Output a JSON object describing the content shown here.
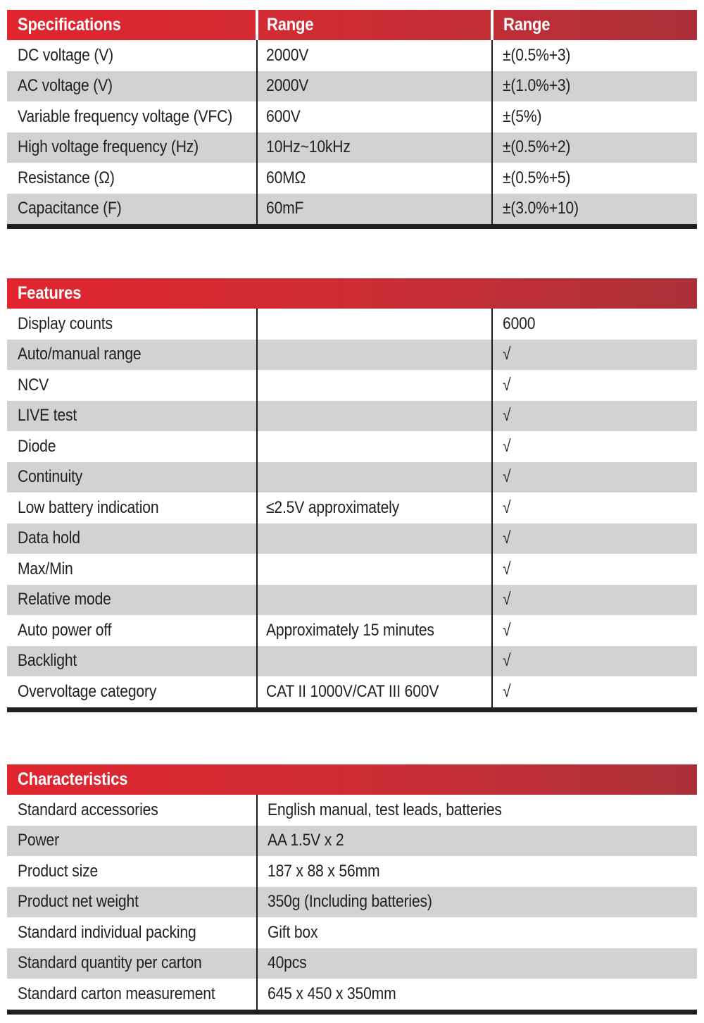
{
  "colors": {
    "header_gradient_left": "#e0252f",
    "header_gradient_mid": "#cd2d35",
    "header_gradient_right": "#ab3039",
    "row_stripe_gray": "#d2d2d3",
    "row_white": "#ffffff",
    "header_text": "#ffffff",
    "body_text": "#231f20",
    "column_divider": "#191919",
    "bottom_bar": "#202021"
  },
  "tables": {
    "specifications": {
      "headers": [
        "Specifications",
        "Range",
        "Range"
      ],
      "rows": [
        [
          "DC voltage (V)",
          "2000V",
          "±(0.5%+3)"
        ],
        [
          "AC voltage (V)",
          "2000V",
          "±(1.0%+3)"
        ],
        [
          "Variable frequency voltage (VFC)",
          "600V",
          "±(5%)"
        ],
        [
          "High voltage frequency (Hz)",
          "10Hz~10kHz",
          "±(0.5%+2)"
        ],
        [
          "Resistance (Ω)",
          "60MΩ",
          "±(0.5%+5)"
        ],
        [
          "Capacitance (F)",
          "60mF",
          "±(3.0%+10)"
        ]
      ]
    },
    "features": {
      "header": "Features",
      "rows": [
        [
          "Display counts",
          "",
          "6000"
        ],
        [
          "Auto/manual range",
          "",
          "√"
        ],
        [
          "NCV",
          "",
          "√"
        ],
        [
          "LIVE test",
          "",
          "√"
        ],
        [
          "Diode",
          "",
          "√"
        ],
        [
          "Continuity",
          "",
          "√"
        ],
        [
          "Low battery indication",
          "≤2.5V approximately",
          "√"
        ],
        [
          "Data hold",
          "",
          "√"
        ],
        [
          "Max/Min",
          "",
          "√"
        ],
        [
          "Relative mode",
          "",
          "√"
        ],
        [
          "Auto power off",
          "Approximately 15 minutes",
          "√"
        ],
        [
          "Backlight",
          "",
          "√"
        ],
        [
          "Overvoltage category",
          "CAT II 1000V/CAT III 600V",
          "√"
        ]
      ]
    },
    "characteristics": {
      "header": "Characteristics",
      "rows": [
        [
          "Standard accessories",
          "English manual, test leads, batteries"
        ],
        [
          "Power",
          "AA 1.5V x 2"
        ],
        [
          "Product size",
          "187 x 88 x 56mm"
        ],
        [
          "Product net weight",
          "350g (Including batteries)"
        ],
        [
          "Standard individual packing",
          "Gift box"
        ],
        [
          "Standard quantity per carton",
          "40pcs"
        ],
        [
          "Standard carton measurement",
          "645 x 450 x 350mm"
        ]
      ]
    }
  }
}
